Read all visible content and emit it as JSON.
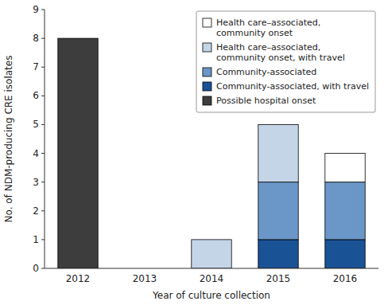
{
  "chart_data": {
    "type": "bar",
    "stacked": true,
    "categories": [
      "2012",
      "2013",
      "2014",
      "2015",
      "2016"
    ],
    "series": [
      {
        "name": "Possible hospital onset",
        "color": "#3d3d3d",
        "values": [
          8,
          0,
          0,
          0,
          0
        ]
      },
      {
        "name": "Community-associated, with travel",
        "color": "#1a5296",
        "values": [
          0,
          0,
          0,
          1,
          1
        ]
      },
      {
        "name": "Community-associated",
        "color": "#6b96c8",
        "values": [
          0,
          0,
          0,
          2,
          2
        ]
      },
      {
        "name": "Health care–associated,\ncommunity onset, with travel",
        "color": "#c5d5e8",
        "values": [
          0,
          0,
          1,
          2,
          0
        ]
      },
      {
        "name": "Health care–associated,\ncommunity onset",
        "color": "#ffffff",
        "values": [
          0,
          0,
          0,
          0,
          1
        ]
      }
    ],
    "xlabel": "Year of culture collection",
    "ylabel": "No. of NDM-producing CRE isolates",
    "ylim": [
      0,
      9
    ],
    "yticks": [
      0,
      1,
      2,
      3,
      4,
      5,
      6,
      7,
      8,
      9
    ],
    "grid": false,
    "legend": "upper-right"
  }
}
